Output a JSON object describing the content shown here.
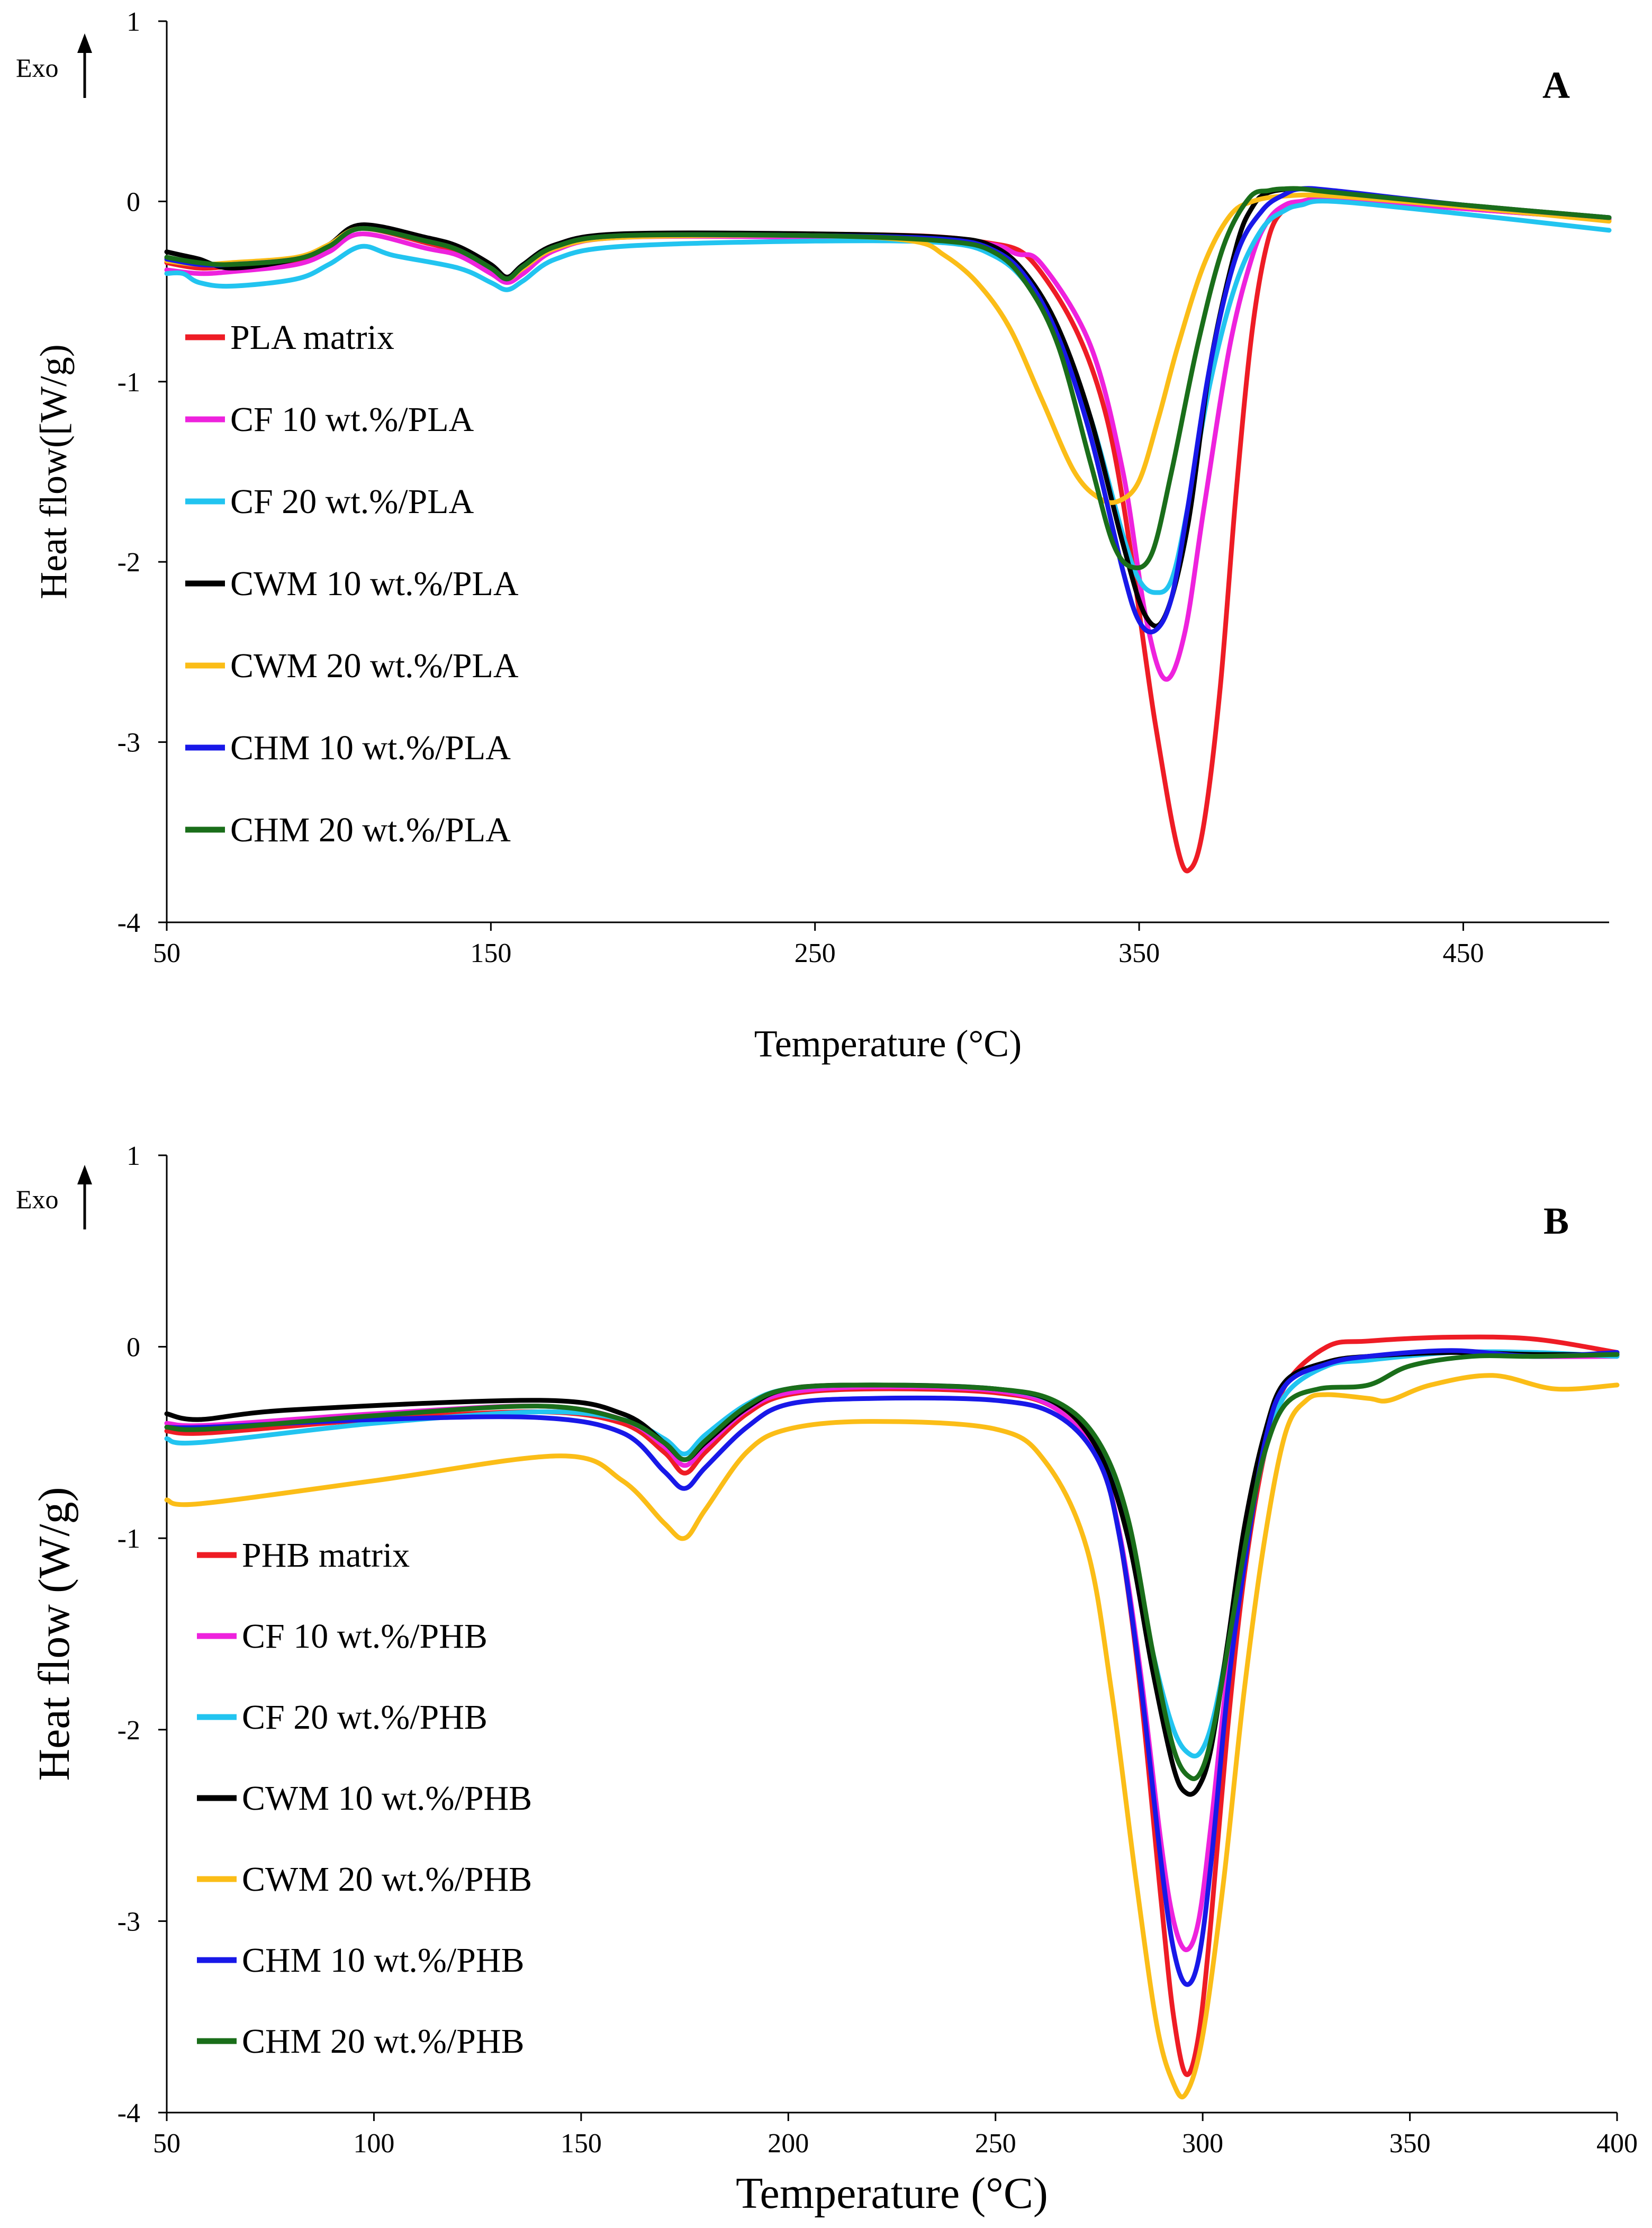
{
  "chart_data": [
    {
      "type": "line",
      "panel_label": "A",
      "exo_label": "Exo",
      "xlabel": "Temperature (°C)",
      "ylabel": "Heat flow([W/g)",
      "xlim": [
        50,
        495
      ],
      "ylim": [
        -4,
        1
      ],
      "xticks": [
        50,
        150,
        250,
        350,
        450
      ],
      "yticks": [
        1,
        0,
        -1,
        -2,
        -3,
        -4
      ],
      "legend_position": "left-middle",
      "grid": false,
      "series": [
        {
          "name": "PLA matrix",
          "color": "#ee1c25",
          "x": [
            50,
            60,
            70,
            90,
            100,
            110,
            130,
            140,
            150,
            155,
            160,
            170,
            190,
            250,
            300,
            320,
            340,
            355,
            362,
            366,
            370,
            375,
            380,
            385,
            390,
            395,
            400,
            410,
            450,
            495
          ],
          "y": [
            -0.34,
            -0.37,
            -0.36,
            -0.33,
            -0.25,
            -0.15,
            -0.23,
            -0.28,
            -0.38,
            -0.44,
            -0.38,
            -0.25,
            -0.19,
            -0.18,
            -0.22,
            -0.4,
            -1.2,
            -2.9,
            -3.6,
            -3.7,
            -3.45,
            -2.7,
            -1.6,
            -0.7,
            -0.2,
            -0.04,
            0.0,
            0.01,
            -0.04,
            -0.1
          ]
        },
        {
          "name": "CF 10 wt.%/PLA",
          "color": "#ee22dd",
          "x": [
            50,
            60,
            70,
            90,
            100,
            110,
            130,
            140,
            150,
            155,
            160,
            170,
            190,
            250,
            300,
            312,
            320,
            335,
            345,
            352,
            358,
            364,
            370,
            378,
            385,
            390,
            395,
            400,
            410,
            450,
            495
          ],
          "y": [
            -0.38,
            -0.4,
            -0.39,
            -0.35,
            -0.28,
            -0.18,
            -0.26,
            -0.3,
            -0.4,
            -0.45,
            -0.4,
            -0.27,
            -0.2,
            -0.2,
            -0.23,
            -0.29,
            -0.35,
            -0.8,
            -1.5,
            -2.3,
            -2.65,
            -2.4,
            -1.7,
            -0.8,
            -0.3,
            -0.1,
            -0.02,
            0.0,
            0.01,
            -0.04,
            -0.1
          ]
        },
        {
          "name": "CF 20 wt.%/PLA",
          "color": "#22c4f0",
          "x": [
            50,
            55,
            60,
            70,
            90,
            100,
            110,
            120,
            140,
            150,
            155,
            160,
            170,
            190,
            250,
            290,
            305,
            315,
            325,
            335,
            345,
            350,
            355,
            360,
            365,
            372,
            380,
            388,
            395,
            400,
            410,
            450,
            495
          ],
          "y": [
            -0.4,
            -0.4,
            -0.45,
            -0.47,
            -0.43,
            -0.35,
            -0.25,
            -0.3,
            -0.37,
            -0.45,
            -0.49,
            -0.44,
            -0.32,
            -0.25,
            -0.22,
            -0.23,
            -0.3,
            -0.45,
            -0.75,
            -1.2,
            -1.85,
            -2.1,
            -2.17,
            -2.1,
            -1.7,
            -1.0,
            -0.45,
            -0.15,
            -0.05,
            -0.02,
            0.0,
            -0.07,
            -0.16
          ]
        },
        {
          "name": "CWM 10 wt.%/PLA",
          "color": "#000000",
          "x": [
            50,
            55,
            60,
            70,
            90,
            100,
            110,
            130,
            140,
            150,
            155,
            160,
            170,
            190,
            250,
            290,
            305,
            315,
            325,
            335,
            345,
            352,
            358,
            365,
            372,
            380,
            385,
            390,
            400,
            410,
            450,
            495
          ],
          "y": [
            -0.28,
            -0.3,
            -0.32,
            -0.37,
            -0.32,
            -0.24,
            -0.13,
            -0.2,
            -0.25,
            -0.35,
            -0.42,
            -0.35,
            -0.24,
            -0.18,
            -0.18,
            -0.2,
            -0.25,
            -0.4,
            -0.7,
            -1.2,
            -1.9,
            -2.3,
            -2.3,
            -1.8,
            -0.9,
            -0.25,
            -0.03,
            0.05,
            0.07,
            0.05,
            -0.02,
            -0.09
          ]
        },
        {
          "name": "CWM 20 wt.%/PLA",
          "color": "#fbbd17",
          "x": [
            50,
            60,
            70,
            90,
            100,
            110,
            130,
            140,
            150,
            155,
            160,
            170,
            190,
            250,
            280,
            290,
            300,
            310,
            320,
            330,
            338,
            344,
            350,
            356,
            362,
            370,
            378,
            385,
            395,
            410,
            450,
            495
          ],
          "y": [
            -0.33,
            -0.35,
            -0.34,
            -0.31,
            -0.24,
            -0.15,
            -0.22,
            -0.27,
            -0.37,
            -0.43,
            -0.37,
            -0.26,
            -0.2,
            -0.19,
            -0.22,
            -0.3,
            -0.45,
            -0.7,
            -1.1,
            -1.5,
            -1.65,
            -1.66,
            -1.55,
            -1.2,
            -0.8,
            -0.35,
            -0.08,
            0.0,
            0.03,
            0.03,
            -0.03,
            -0.11
          ]
        },
        {
          "name": "CHM 10 wt.%/PLA",
          "color": "#1818e8",
          "x": [
            50,
            60,
            70,
            90,
            100,
            110,
            130,
            140,
            150,
            155,
            160,
            170,
            190,
            250,
            290,
            305,
            315,
            325,
            335,
            345,
            350,
            355,
            360,
            365,
            372,
            380,
            388,
            395,
            400,
            410,
            450,
            495
          ],
          "y": [
            -0.32,
            -0.35,
            -0.35,
            -0.32,
            -0.25,
            -0.15,
            -0.22,
            -0.27,
            -0.37,
            -0.43,
            -0.36,
            -0.25,
            -0.19,
            -0.19,
            -0.21,
            -0.27,
            -0.42,
            -0.75,
            -1.3,
            -2.05,
            -2.33,
            -2.38,
            -2.2,
            -1.7,
            -0.9,
            -0.3,
            -0.05,
            0.04,
            0.07,
            0.06,
            -0.02,
            -0.09
          ]
        },
        {
          "name": "CHM 20 wt.%/PLA",
          "color": "#1a6e1a",
          "x": [
            50,
            60,
            70,
            90,
            100,
            110,
            130,
            140,
            150,
            155,
            160,
            170,
            190,
            250,
            290,
            305,
            315,
            325,
            335,
            342,
            348,
            354,
            360,
            368,
            376,
            384,
            390,
            395,
            400,
            410,
            450,
            495
          ],
          "y": [
            -0.31,
            -0.34,
            -0.35,
            -0.32,
            -0.25,
            -0.15,
            -0.22,
            -0.27,
            -0.37,
            -0.43,
            -0.36,
            -0.25,
            -0.19,
            -0.19,
            -0.22,
            -0.28,
            -0.45,
            -0.8,
            -1.45,
            -1.9,
            -2.03,
            -1.95,
            -1.5,
            -0.8,
            -0.25,
            0.02,
            0.06,
            0.07,
            0.07,
            0.05,
            -0.02,
            -0.09
          ]
        }
      ]
    },
    {
      "type": "line",
      "panel_label": "B",
      "exo_label": "Exo",
      "xlabel": "Temperature (°C)",
      "ylabel": "Heat flow (W/g)",
      "xlim": [
        50,
        400
      ],
      "ylim": [
        -4,
        1
      ],
      "xticks": [
        50,
        100,
        150,
        200,
        250,
        300,
        350,
        400
      ],
      "yticks": [
        1,
        0,
        -1,
        -2,
        -3,
        -4
      ],
      "legend_position": "left-middle",
      "grid": false,
      "series": [
        {
          "name": "PHB matrix",
          "color": "#ee1c25",
          "x": [
            50,
            60,
            100,
            140,
            160,
            170,
            175,
            180,
            190,
            200,
            220,
            250,
            265,
            275,
            280,
            285,
            290,
            293,
            296,
            299,
            302,
            306,
            310,
            315,
            320,
            330,
            340,
            360,
            380,
            400
          ],
          "y": [
            -0.44,
            -0.45,
            -0.38,
            -0.34,
            -0.4,
            -0.55,
            -0.66,
            -0.55,
            -0.35,
            -0.25,
            -0.22,
            -0.24,
            -0.33,
            -0.6,
            -1.0,
            -1.8,
            -2.9,
            -3.5,
            -3.8,
            -3.6,
            -3.0,
            -2.0,
            -1.2,
            -0.55,
            -0.2,
            0.0,
            0.03,
            0.05,
            0.04,
            -0.03
          ]
        },
        {
          "name": "CF 10 wt.%/PHB",
          "color": "#ee22dd",
          "x": [
            50,
            60,
            100,
            140,
            160,
            170,
            175,
            180,
            190,
            200,
            220,
            250,
            265,
            275,
            280,
            285,
            290,
            293,
            296,
            299,
            302,
            306,
            310,
            315,
            320,
            330,
            340,
            360,
            380,
            400
          ],
          "y": [
            -0.4,
            -0.41,
            -0.35,
            -0.31,
            -0.38,
            -0.52,
            -0.62,
            -0.52,
            -0.33,
            -0.24,
            -0.21,
            -0.23,
            -0.33,
            -0.6,
            -0.98,
            -1.7,
            -2.6,
            -3.0,
            -3.15,
            -3.0,
            -2.5,
            -1.7,
            -1.1,
            -0.5,
            -0.2,
            -0.09,
            -0.05,
            -0.03,
            -0.05,
            -0.05
          ]
        },
        {
          "name": "CF 20 wt.%/PHB",
          "color": "#22c4f0",
          "x": [
            50,
            58,
            100,
            140,
            160,
            170,
            175,
            180,
            190,
            200,
            220,
            250,
            265,
            275,
            282,
            288,
            293,
            297,
            300,
            303,
            307,
            311,
            315,
            320,
            330,
            340,
            360,
            380,
            400
          ],
          "y": [
            -0.48,
            -0.5,
            -0.4,
            -0.34,
            -0.38,
            -0.48,
            -0.56,
            -0.46,
            -0.3,
            -0.22,
            -0.2,
            -0.22,
            -0.3,
            -0.52,
            -0.95,
            -1.6,
            -2.0,
            -2.13,
            -2.1,
            -1.9,
            -1.45,
            -0.95,
            -0.55,
            -0.25,
            -0.1,
            -0.07,
            -0.03,
            -0.03,
            -0.05
          ]
        },
        {
          "name": "CWM 10 wt.%/PHB",
          "color": "#000000",
          "x": [
            50,
            58,
            80,
            140,
            160,
            170,
            175,
            180,
            190,
            200,
            220,
            250,
            265,
            275,
            282,
            288,
            293,
            296,
            299,
            302,
            306,
            310,
            315,
            320,
            330,
            340,
            360,
            380,
            400
          ],
          "y": [
            -0.35,
            -0.38,
            -0.33,
            -0.28,
            -0.35,
            -0.5,
            -0.59,
            -0.5,
            -0.32,
            -0.22,
            -0.2,
            -0.22,
            -0.3,
            -0.55,
            -1.0,
            -1.7,
            -2.2,
            -2.33,
            -2.3,
            -2.1,
            -1.55,
            -0.95,
            -0.45,
            -0.18,
            -0.08,
            -0.05,
            -0.03,
            -0.04,
            -0.04
          ]
        },
        {
          "name": "CWM 20 wt.%/PHB",
          "color": "#fbbd17",
          "x": [
            50,
            58,
            100,
            145,
            160,
            170,
            175,
            180,
            190,
            200,
            220,
            250,
            262,
            272,
            278,
            284,
            289,
            293,
            296,
            300,
            305,
            310,
            315,
            320,
            325,
            330,
            340,
            345,
            355,
            370,
            385,
            400
          ],
          "y": [
            -0.8,
            -0.82,
            -0.7,
            -0.57,
            -0.7,
            -0.92,
            -1.0,
            -0.85,
            -0.55,
            -0.43,
            -0.39,
            -0.43,
            -0.6,
            -1.05,
            -1.8,
            -2.8,
            -3.55,
            -3.85,
            -3.9,
            -3.6,
            -2.8,
            -1.8,
            -1.0,
            -0.45,
            -0.28,
            -0.25,
            -0.27,
            -0.28,
            -0.2,
            -0.15,
            -0.22,
            -0.2
          ]
        },
        {
          "name": "CHM 10 wt.%/PHB",
          "color": "#1818e8",
          "x": [
            50,
            60,
            100,
            140,
            160,
            170,
            175,
            180,
            190,
            200,
            220,
            250,
            265,
            275,
            280,
            285,
            290,
            293,
            296,
            299,
            302,
            306,
            310,
            315,
            320,
            330,
            340,
            360,
            380,
            400
          ],
          "y": [
            -0.42,
            -0.42,
            -0.38,
            -0.37,
            -0.45,
            -0.65,
            -0.74,
            -0.63,
            -0.42,
            -0.3,
            -0.27,
            -0.28,
            -0.36,
            -0.6,
            -1.0,
            -1.75,
            -2.7,
            -3.15,
            -3.33,
            -3.2,
            -2.7,
            -1.8,
            -1.15,
            -0.5,
            -0.2,
            -0.09,
            -0.05,
            -0.02,
            -0.05,
            -0.03
          ]
        },
        {
          "name": "CHM 20 wt.%/PHB",
          "color": "#1a6e1a",
          "x": [
            50,
            60,
            100,
            140,
            160,
            170,
            175,
            180,
            190,
            200,
            220,
            250,
            265,
            275,
            282,
            288,
            293,
            297,
            300,
            303,
            307,
            311,
            315,
            320,
            328,
            340,
            350,
            365,
            380,
            400
          ],
          "y": [
            -0.42,
            -0.43,
            -0.36,
            -0.31,
            -0.38,
            -0.5,
            -0.59,
            -0.49,
            -0.31,
            -0.22,
            -0.2,
            -0.22,
            -0.29,
            -0.5,
            -0.9,
            -1.6,
            -2.1,
            -2.25,
            -2.2,
            -1.95,
            -1.45,
            -0.95,
            -0.55,
            -0.3,
            -0.22,
            -0.2,
            -0.1,
            -0.05,
            -0.05,
            -0.04
          ]
        }
      ]
    }
  ]
}
